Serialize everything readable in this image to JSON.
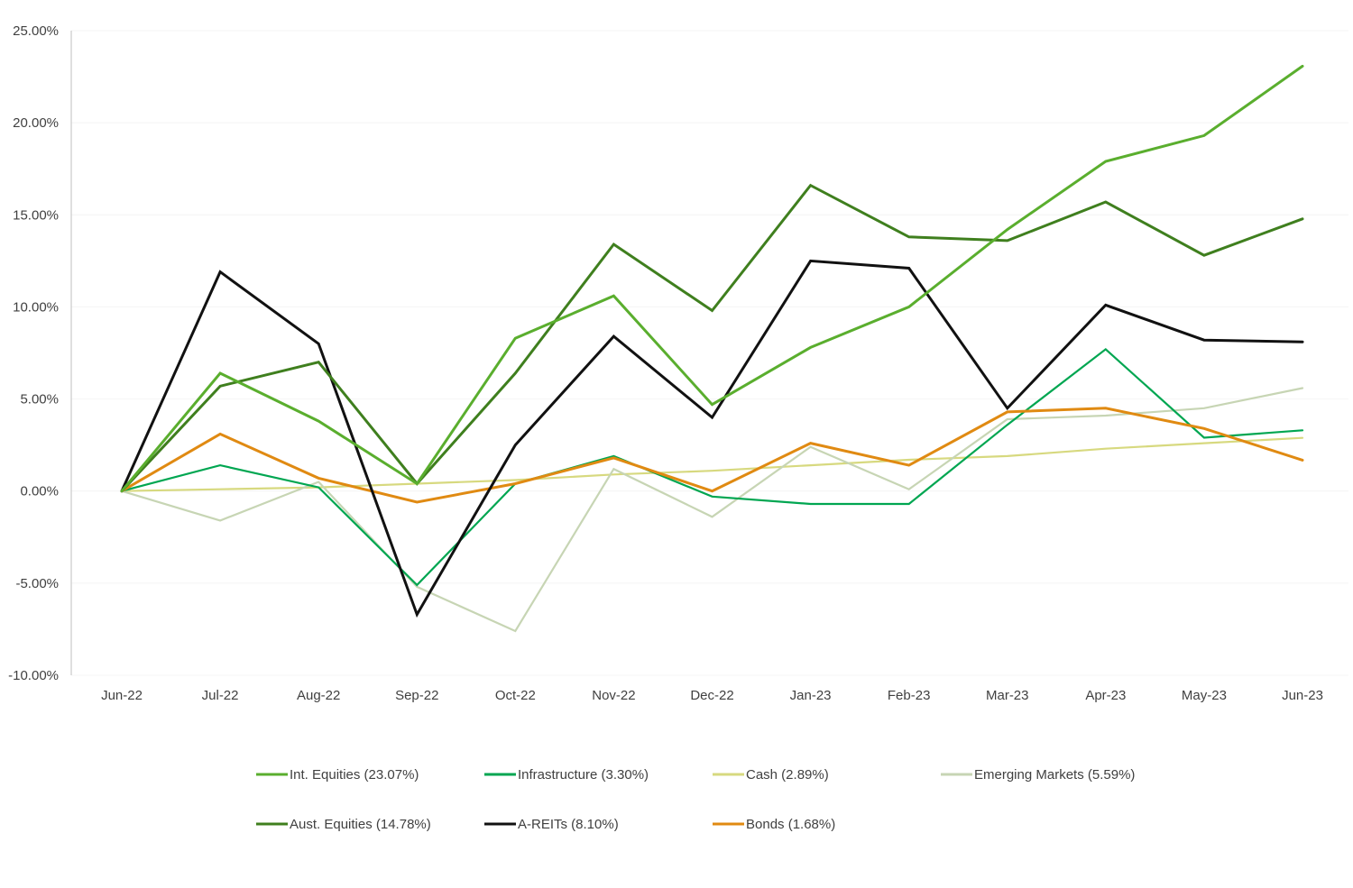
{
  "chart_data": {
    "type": "line",
    "title": "",
    "xlabel": "",
    "ylabel": "",
    "ylim": [
      -10,
      25
    ],
    "yticks": [
      -10,
      -5,
      0,
      5,
      10,
      15,
      20,
      25
    ],
    "ytick_labels": [
      "-10.00%",
      "-5.00%",
      "0.00%",
      "5.00%",
      "10.00%",
      "15.00%",
      "20.00%",
      "25.00%"
    ],
    "categories": [
      "Jun-22",
      "Jul-22",
      "Aug-22",
      "Sep-22",
      "Oct-22",
      "Nov-22",
      "Dec-22",
      "Jan-23",
      "Feb-23",
      "Mar-23",
      "Apr-23",
      "May-23",
      "Jun-23"
    ],
    "legend_position": "bottom",
    "series": [
      {
        "name": "Int. Equities (23.07%)",
        "color": "#5aae2e",
        "values": [
          0,
          6.4,
          3.8,
          0.4,
          8.3,
          10.6,
          4.7,
          7.8,
          10.0,
          14.2,
          17.9,
          19.3,
          23.07
        ]
      },
      {
        "name": "Infrastructure (3.30%)",
        "color": "#00a651",
        "values": [
          0,
          1.4,
          0.2,
          -5.1,
          0.4,
          1.9,
          -0.3,
          -0.7,
          -0.7,
          3.6,
          7.7,
          2.9,
          3.3
        ]
      },
      {
        "name": "Cash (2.89%)",
        "color": "#d7d97f",
        "values": [
          0,
          0.1,
          0.2,
          0.4,
          0.6,
          0.9,
          1.1,
          1.4,
          1.7,
          1.9,
          2.3,
          2.6,
          2.89
        ]
      },
      {
        "name": "Emerging Markets (5.59%)",
        "color": "#c7d5b4",
        "values": [
          0,
          -1.6,
          0.5,
          -5.2,
          -7.6,
          1.2,
          -1.4,
          2.4,
          0.1,
          3.9,
          4.1,
          4.5,
          5.59
        ]
      },
      {
        "name": "Aust. Equities (14.78%)",
        "color": "#3f7f1e",
        "values": [
          0,
          5.7,
          7.0,
          0.4,
          6.4,
          13.4,
          9.8,
          16.6,
          13.8,
          13.6,
          15.7,
          12.8,
          14.78
        ]
      },
      {
        "name": "A-REITs (8.10%)",
        "color": "#111111",
        "values": [
          0,
          11.9,
          8.0,
          -6.7,
          2.5,
          8.4,
          4.0,
          12.5,
          12.1,
          4.5,
          10.1,
          8.2,
          8.1
        ]
      },
      {
        "name": "Bonds (1.68%)",
        "color": "#e08a12",
        "values": [
          0,
          3.1,
          0.7,
          -0.6,
          0.4,
          1.8,
          0.0,
          2.6,
          1.4,
          4.3,
          4.5,
          3.4,
          1.68
        ]
      }
    ]
  }
}
